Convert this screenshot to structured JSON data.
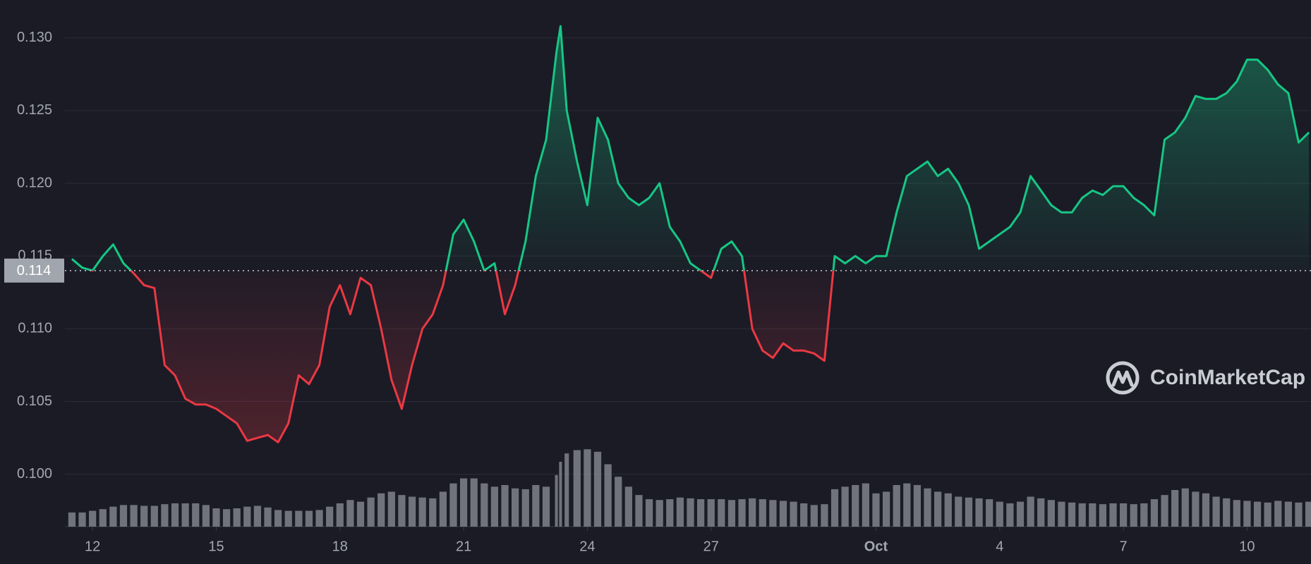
{
  "chart_data": {
    "type": "line",
    "x": [
      11.5,
      11.75,
      12,
      12.25,
      12.5,
      12.75,
      13,
      13.25,
      13.5,
      13.75,
      14,
      14.25,
      14.5,
      14.75,
      15,
      15.25,
      15.5,
      15.75,
      16,
      16.25,
      16.5,
      16.75,
      17,
      17.25,
      17.5,
      17.75,
      18,
      18.25,
      18.5,
      18.75,
      19,
      19.25,
      19.5,
      19.75,
      20,
      20.25,
      20.5,
      20.75,
      21,
      21.25,
      21.5,
      21.75,
      22,
      22.25,
      22.5,
      22.75,
      23,
      23.25,
      23.35,
      23.5,
      23.75,
      24,
      24.25,
      24.5,
      24.75,
      25,
      25.25,
      25.5,
      25.75,
      26,
      26.25,
      26.5,
      26.75,
      27,
      27.25,
      27.5,
      27.75,
      28,
      28.25,
      28.5,
      28.75,
      29,
      29.25,
      29.5,
      29.75,
      30,
      30.25,
      30.5,
      30.75,
      31,
      31.25,
      31.5,
      31.75,
      32,
      32.25,
      32.5,
      32.75,
      33,
      33.25,
      33.5,
      33.75,
      34,
      34.25,
      34.5,
      34.75,
      35,
      35.25,
      35.5,
      35.75,
      36,
      36.25,
      36.5,
      36.75,
      37,
      37.25,
      37.5,
      37.75,
      38,
      38.25,
      38.5,
      38.75,
      39,
      39.25,
      39.5,
      39.75,
      40,
      40.25,
      40.5,
      40.75,
      41,
      41.25,
      41.5
    ],
    "values": [
      0.1148,
      0.1142,
      0.114,
      0.115,
      0.1158,
      0.1145,
      0.1138,
      0.113,
      0.1128,
      0.1075,
      0.1068,
      0.1052,
      0.1048,
      0.1048,
      0.1045,
      0.104,
      0.1035,
      0.1023,
      0.1025,
      0.1027,
      0.1022,
      0.1035,
      0.1068,
      0.1062,
      0.1075,
      0.1115,
      0.113,
      0.111,
      0.1135,
      0.113,
      0.11,
      0.1065,
      0.1045,
      0.1075,
      0.11,
      0.111,
      0.113,
      0.1165,
      0.1175,
      0.116,
      0.114,
      0.1145,
      0.111,
      0.113,
      0.116,
      0.1205,
      0.123,
      0.129,
      0.1308,
      0.125,
      0.1215,
      0.1185,
      0.1245,
      0.123,
      0.12,
      0.119,
      0.1185,
      0.119,
      0.12,
      0.117,
      0.116,
      0.1145,
      0.114,
      0.1135,
      0.1155,
      0.116,
      0.115,
      0.11,
      0.1085,
      0.108,
      0.109,
      0.1085,
      0.1085,
      0.1083,
      0.1078,
      0.115,
      0.1145,
      0.115,
      0.1145,
      0.115,
      0.115,
      0.118,
      0.1205,
      0.121,
      0.1215,
      0.1205,
      0.121,
      0.12,
      0.1185,
      0.1155,
      0.116,
      0.1165,
      0.117,
      0.118,
      0.1205,
      0.1195,
      0.1185,
      0.118,
      0.118,
      0.119,
      0.1195,
      0.1192,
      0.1198,
      0.1198,
      0.119,
      0.1185,
      0.1178,
      0.123,
      0.1235,
      0.1245,
      0.126,
      0.1258,
      0.1258,
      0.1262,
      0.127,
      0.1285,
      0.1285,
      0.1278,
      0.1268,
      0.1262,
      0.1228,
      0.1235
    ],
    "volume": [
      17,
      17,
      19,
      21,
      24,
      26,
      26,
      25,
      25,
      27,
      28,
      28,
      28,
      26,
      22,
      21,
      22,
      24,
      25,
      23,
      20,
      19,
      19,
      19,
      20,
      24,
      28,
      32,
      30,
      35,
      40,
      42,
      38,
      36,
      35,
      34,
      42,
      52,
      58,
      58,
      52,
      48,
      50,
      46,
      45,
      50,
      48,
      62,
      78,
      88,
      92,
      93,
      90,
      75,
      60,
      48,
      38,
      33,
      32,
      33,
      35,
      34,
      33,
      33,
      33,
      32,
      33,
      34,
      33,
      32,
      31,
      30,
      28,
      26,
      27,
      45,
      48,
      50,
      52,
      40,
      42,
      50,
      52,
      50,
      46,
      42,
      40,
      36,
      35,
      34,
      33,
      30,
      28,
      30,
      36,
      34,
      32,
      30,
      29,
      28,
      28,
      27,
      28,
      28,
      27,
      28,
      33,
      38,
      44,
      46,
      42,
      40,
      36,
      34,
      32,
      31,
      30,
      29,
      31,
      30,
      29,
      30
    ],
    "y2lim": [
      0,
      100
    ],
    "baseline": 0.114,
    "up_color": "#16c784",
    "down_color": "#ea3943",
    "volume_color": "#8e919a",
    "xlim": [
      11.33,
      41.55
    ],
    "xticks": [
      12,
      15,
      18,
      21,
      24,
      27,
      {
        "value": 31,
        "label": "Oct"
      },
      {
        "value": 34,
        "label": "4"
      },
      {
        "value": 37,
        "label": "7"
      },
      {
        "value": 40,
        "label": "10"
      }
    ],
    "ylim": [
      0.0964,
      0.1326
    ],
    "yticks": [
      {
        "value": 0.1,
        "label": "0.100"
      },
      0.105,
      {
        "value": 0.11,
        "label": "0.110"
      },
      0.115,
      {
        "value": 0.12,
        "label": "0.120"
      },
      0.125,
      {
        "value": 0.13,
        "label": "0.130"
      }
    ],
    "grid": true,
    "watermark": "CoinMarketCap"
  }
}
